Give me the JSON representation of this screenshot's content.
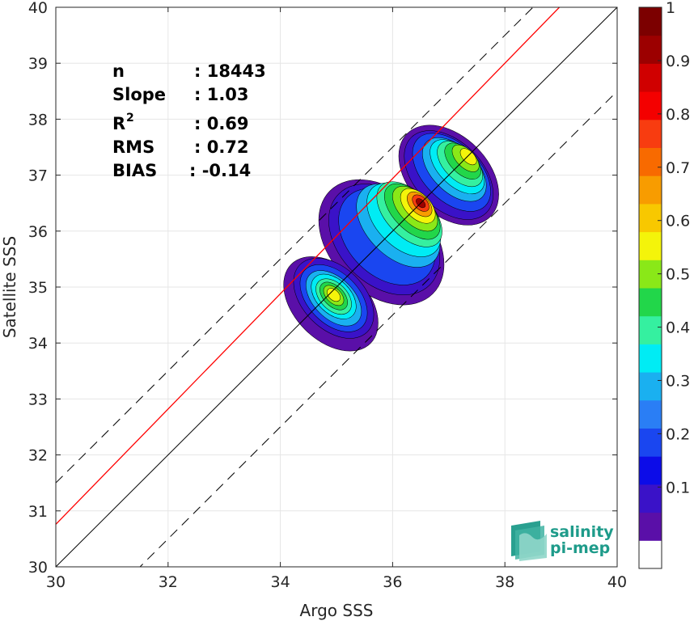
{
  "chart_data": {
    "type": "heatmap",
    "xlabel": "Argo SSS",
    "ylabel": "Satellite SSS",
    "xlim": [
      30,
      40
    ],
    "ylim": [
      30,
      40
    ],
    "xticks": [
      "30",
      "32",
      "34",
      "36",
      "38",
      "40"
    ],
    "yticks": [
      "30",
      "31",
      "32",
      "33",
      "34",
      "35",
      "36",
      "37",
      "38",
      "39",
      "40"
    ],
    "grid": true,
    "stats": [
      {
        "label": "n",
        "value": ": 18443"
      },
      {
        "label": "Slope",
        "value": ": 1.03"
      },
      {
        "label": "R",
        "sup": "2",
        "value": ": 0.69"
      },
      {
        "label": "RMS",
        "value": ": 0.72"
      },
      {
        "label": "BIAS",
        "value": ": -0.14"
      }
    ],
    "lines": {
      "one_to_one": {
        "slope": 1,
        "intercept": 0,
        "color": "#000000"
      },
      "regression": {
        "slope": 1.03,
        "intercept": -0.14,
        "color": "#ff0000"
      },
      "offset_dashed": 1.5
    },
    "density": {
      "note_levels": "normalized density contour levels 0.05 to 1",
      "peaks": [
        {
          "x": 36.5,
          "y": 36.5,
          "value": 1.0
        },
        {
          "x": 34.95,
          "y": 34.85,
          "value": 0.65
        },
        {
          "x": 37.4,
          "y": 37.35,
          "value": 0.68
        }
      ]
    },
    "colorbar": {
      "ticks": [
        "0.1",
        "0.2",
        "0.3",
        "0.4",
        "0.5",
        "0.6",
        "0.7",
        "0.8",
        "0.9",
        "1"
      ],
      "colors": [
        "#ffffff",
        "#5a0fa8",
        "#3a12c8",
        "#0c0ce8",
        "#1a46f0",
        "#2a7ef5",
        "#1ab0f0",
        "#00ecf4",
        "#35f0a0",
        "#22d64a",
        "#8ae818",
        "#f4f40a",
        "#f8c800",
        "#f89c00",
        "#f86a00",
        "#f83c10",
        "#f40000",
        "#d00000",
        "#9c0000",
        "#7c0000"
      ]
    }
  },
  "logo": {
    "line1": "salinity",
    "line2": "pi-mep"
  }
}
